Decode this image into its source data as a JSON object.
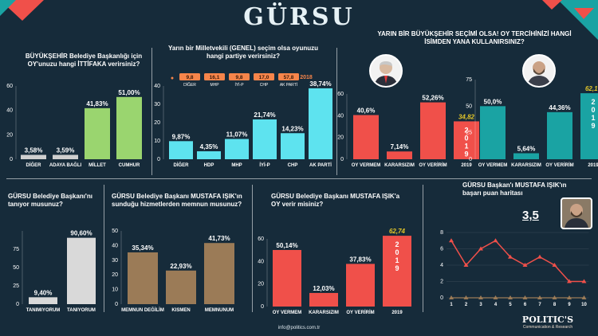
{
  "colors": {
    "bg": "#162b3a",
    "green": "#9ad56f",
    "gray": "#cfcfcf",
    "cyan": "#5ee3ef",
    "red": "#f0504a",
    "teal": "#1aa3a3",
    "orange": "#f7854a",
    "yellow": "#e3c62a",
    "line": "#f0504a"
  },
  "header": {
    "title": "GÜRSU"
  },
  "footer": {
    "email": "info@politics.com.tr",
    "brand": "POLITIC'S",
    "brand_sub": "Communication & Research"
  },
  "chart_data": [
    {
      "id": "c1",
      "type": "bar",
      "question": "BÜYÜKŞEHİR Belediye Başkanlığı için OY'unuzu hangi İTTİFAKA verirsiniz?",
      "categories": [
        "DİĞER",
        "ADAYA BAĞLI",
        "MİLLET",
        "CUMHUR"
      ],
      "values": [
        3.58,
        3.59,
        41.83,
        51.0
      ],
      "labels": [
        "3,58%",
        "3,59%",
        "41,83%",
        "51,00%"
      ],
      "ylim": [
        0,
        60
      ],
      "yticks": [
        "0",
        "20",
        "40",
        "60"
      ]
    },
    {
      "id": "c2",
      "type": "bar",
      "question": "Yarın bir Milletvekili  (GENEL) seçim olsa oyunuzu hangi partiye verirsiniz?",
      "categories": [
        "DİĞER",
        "HDP",
        "MHP",
        "İYİ-P",
        "CHP",
        "AK PARTİ"
      ],
      "values": [
        9.87,
        4.35,
        11.07,
        21.74,
        14.23,
        38.74
      ],
      "labels": [
        "9,87%",
        "4,35%",
        "11,07%",
        "21,74%",
        "14,23%",
        "38,74%"
      ],
      "ylim": [
        0,
        40
      ],
      "yticks": [
        "0",
        "10",
        "20",
        "30",
        "40"
      ],
      "legend_2018": {
        "year": "2018",
        "items": [
          {
            "value": "9,8",
            "party": "DİĞER"
          },
          {
            "value": "16,1",
            "party": "MHP"
          },
          {
            "value": "9,8",
            "party": "İYİ-P"
          },
          {
            "value": "17,0",
            "party": "CHP"
          },
          {
            "value": "57,8",
            "party": "AK PARTİ"
          }
        ]
      }
    },
    {
      "id": "c3",
      "type": "bar",
      "question": "YARIN BİR BÜYÜKŞEHİR SEÇİMİ OLSA! OY TERCİHİNİZİ HANGİ İSİMDEN YANA KULLANIRSINIZ?",
      "yticks": [
        "0",
        "20",
        "40",
        "60"
      ],
      "ylim": [
        0,
        60
      ],
      "groups": [
        {
          "categories": [
            "OY VERMEM",
            "KARARSIZIM",
            "OY VERİRİM",
            "2019"
          ],
          "values": [
            40.6,
            7.14,
            52.26,
            34.82
          ],
          "labels": [
            "40,6%",
            "7,14%",
            "52,26%",
            "34,82"
          ],
          "vertical_label": "2019"
        },
        {
          "categories": [
            "OY VERMEM",
            "KARARSIZIM",
            "OY VERİRİM",
            "2019"
          ],
          "values": [
            50.0,
            5.64,
            44.36,
            62.17
          ],
          "labels": [
            "50,0%",
            "5,64%",
            "44,36%",
            "62,17"
          ],
          "vertical_label": "2019"
        }
      ],
      "second_axis_ticks": [
        "0",
        "25",
        "50",
        "75"
      ]
    },
    {
      "id": "c4",
      "type": "bar",
      "question": "GÜRSU Belediye Başkanı'nı tanıyor musunuz?",
      "categories": [
        "TANIMIYORUM",
        "TANIYORUM"
      ],
      "values": [
        9.4,
        90.6
      ],
      "labels": [
        "9,40%",
        "90,60%"
      ],
      "ylim": [
        0,
        100
      ],
      "yticks": [
        "0",
        "25",
        "50",
        "75"
      ]
    },
    {
      "id": "c5",
      "type": "bar",
      "question": "GÜRSU Belediye Başkanı MUSTAFA IŞIK'ın sunduğu hizmetlerden memnun musunuz?",
      "categories": [
        "MEMNUN DEĞİLİM",
        "KISMEN",
        "MEMNUNUM"
      ],
      "values": [
        35.34,
        22.93,
        41.73
      ],
      "labels": [
        "35,34%",
        "22,93%",
        "41,73%"
      ],
      "ylim": [
        0,
        50
      ],
      "yticks": [
        "0",
        "10",
        "20",
        "30",
        "40",
        "50"
      ]
    },
    {
      "id": "c6",
      "type": "bar",
      "question": "GÜRSU Belediye Başkanı MUSTAFA IŞIK'a OY verir misiniz?",
      "categories": [
        "OY VERMEM",
        "KARARSIZIM",
        "OY VERİRİM",
        "2019"
      ],
      "values": [
        50.14,
        12.03,
        37.83,
        62.74
      ],
      "labels": [
        "50,14%",
        "12,03%",
        "37,83%",
        "62,74"
      ],
      "vertical_label": "2019",
      "ylim": [
        0,
        60
      ],
      "yticks": [
        "0",
        "20",
        "40",
        "60"
      ]
    },
    {
      "id": "c7",
      "type": "line",
      "question": "GÜRSU Başkan'ı MUSTAFA IŞIK'ın başarı puan haritası",
      "score": "3,5",
      "x": [
        "1",
        "2",
        "3",
        "4",
        "5",
        "6",
        "7",
        "8",
        "9",
        "10"
      ],
      "values": [
        7,
        4,
        6,
        7,
        5,
        4,
        5,
        4,
        2,
        2
      ],
      "baseline": [
        0,
        0,
        0,
        0,
        0,
        0,
        0,
        0,
        0,
        0
      ],
      "ylim": [
        0,
        8
      ],
      "yticks": [
        "0",
        "2",
        "4",
        "6",
        "8"
      ]
    }
  ]
}
